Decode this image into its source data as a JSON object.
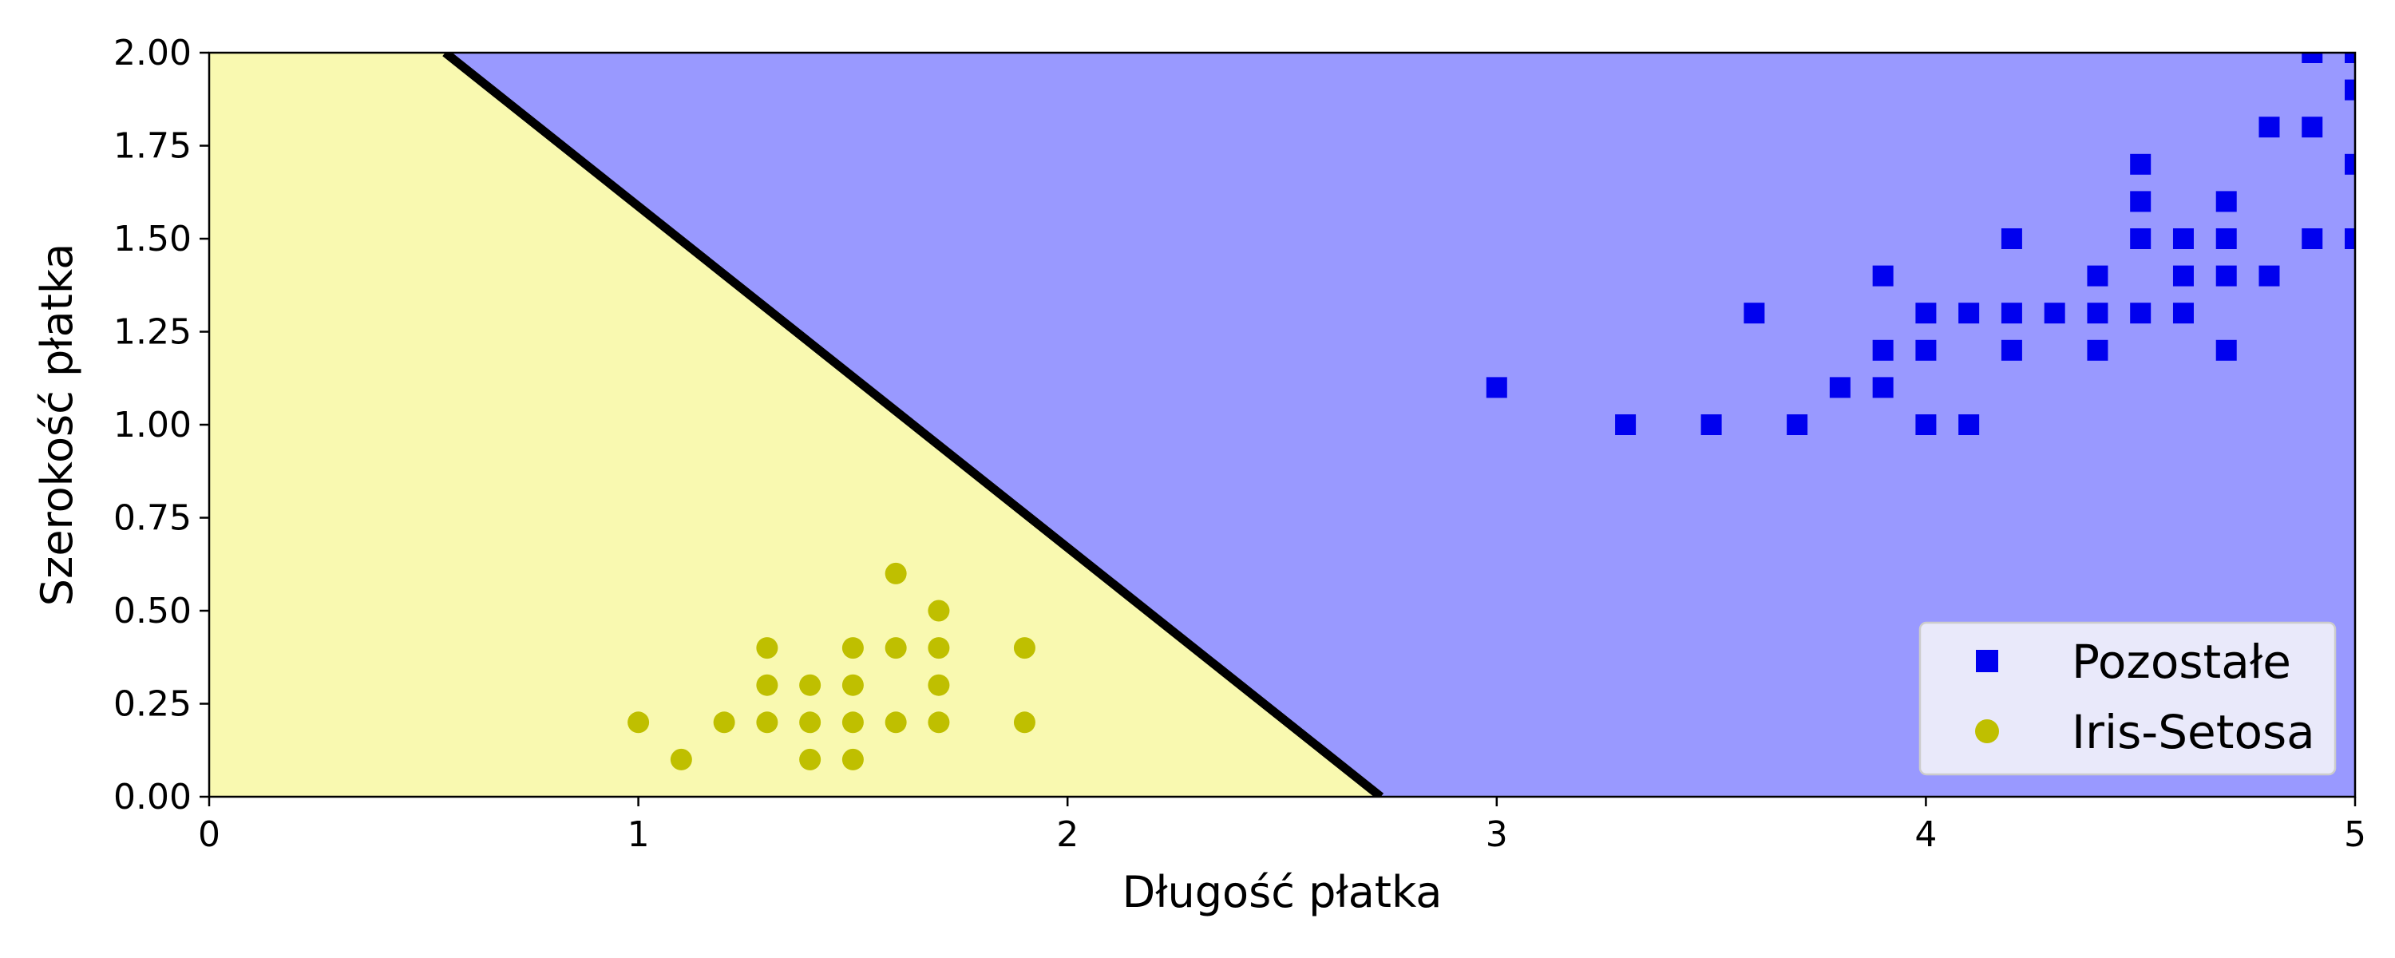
{
  "chart_data": {
    "type": "scatter",
    "xlabel": "Długość płatka",
    "ylabel": "Szerokość płatka",
    "xlim": [
      0,
      5
    ],
    "ylim": [
      0,
      2
    ],
    "x_ticks": [
      0,
      1,
      2,
      3,
      4,
      5
    ],
    "x_tick_labels": [
      "0",
      "1",
      "2",
      "3",
      "4",
      "5"
    ],
    "y_ticks": [
      0,
      0.25,
      0.5,
      0.75,
      1.0,
      1.25,
      1.5,
      1.75,
      2.0
    ],
    "y_tick_labels": [
      "0.00",
      "0.25",
      "0.50",
      "0.75",
      "1.00",
      "1.25",
      "1.50",
      "1.75",
      "2.00"
    ],
    "grid": false,
    "legend_position": "bottom-right",
    "decision_boundary": {
      "points": [
        [
          0.55,
          2.0
        ],
        [
          2.73,
          0.0
        ]
      ],
      "color": "#000000"
    },
    "regions": [
      {
        "class": "Iris-Setosa",
        "side": "below-left",
        "color": "#f9f9b0"
      },
      {
        "class": "Pozostałe",
        "side": "above-right",
        "color": "#9999ff"
      }
    ],
    "series": [
      {
        "name": "Pozostałe",
        "marker": "square",
        "color": "#0000ee",
        "points": [
          [
            3.0,
            1.1
          ],
          [
            3.3,
            1.0
          ],
          [
            3.5,
            1.0
          ],
          [
            3.6,
            1.3
          ],
          [
            3.7,
            1.0
          ],
          [
            3.8,
            1.1
          ],
          [
            3.9,
            1.1
          ],
          [
            3.9,
            1.2
          ],
          [
            3.9,
            1.4
          ],
          [
            4.0,
            1.0
          ],
          [
            4.0,
            1.2
          ],
          [
            4.0,
            1.3
          ],
          [
            4.1,
            1.0
          ],
          [
            4.1,
            1.3
          ],
          [
            4.2,
            1.2
          ],
          [
            4.2,
            1.3
          ],
          [
            4.2,
            1.5
          ],
          [
            4.3,
            1.3
          ],
          [
            4.4,
            1.2
          ],
          [
            4.4,
            1.3
          ],
          [
            4.4,
            1.4
          ],
          [
            4.5,
            1.3
          ],
          [
            4.5,
            1.5
          ],
          [
            4.5,
            1.6
          ],
          [
            4.5,
            1.7
          ],
          [
            4.6,
            1.3
          ],
          [
            4.6,
            1.4
          ],
          [
            4.6,
            1.5
          ],
          [
            4.7,
            1.2
          ],
          [
            4.7,
            1.4
          ],
          [
            4.7,
            1.5
          ],
          [
            4.7,
            1.6
          ],
          [
            4.8,
            1.4
          ],
          [
            4.8,
            1.8
          ],
          [
            4.9,
            1.5
          ],
          [
            4.9,
            1.8
          ],
          [
            4.9,
            2.0
          ],
          [
            5.0,
            1.5
          ],
          [
            5.0,
            1.7
          ],
          [
            5.0,
            1.9
          ],
          [
            5.0,
            2.0
          ]
        ]
      },
      {
        "name": "Iris-Setosa",
        "marker": "circle",
        "color": "#bfbf00",
        "points": [
          [
            1.0,
            0.2
          ],
          [
            1.1,
            0.1
          ],
          [
            1.2,
            0.2
          ],
          [
            1.3,
            0.2
          ],
          [
            1.3,
            0.3
          ],
          [
            1.3,
            0.4
          ],
          [
            1.4,
            0.1
          ],
          [
            1.4,
            0.2
          ],
          [
            1.4,
            0.3
          ],
          [
            1.5,
            0.1
          ],
          [
            1.5,
            0.2
          ],
          [
            1.5,
            0.3
          ],
          [
            1.5,
            0.4
          ],
          [
            1.6,
            0.2
          ],
          [
            1.6,
            0.4
          ],
          [
            1.6,
            0.6
          ],
          [
            1.7,
            0.2
          ],
          [
            1.7,
            0.3
          ],
          [
            1.7,
            0.4
          ],
          [
            1.7,
            0.5
          ],
          [
            1.9,
            0.2
          ],
          [
            1.9,
            0.4
          ]
        ]
      }
    ]
  }
}
